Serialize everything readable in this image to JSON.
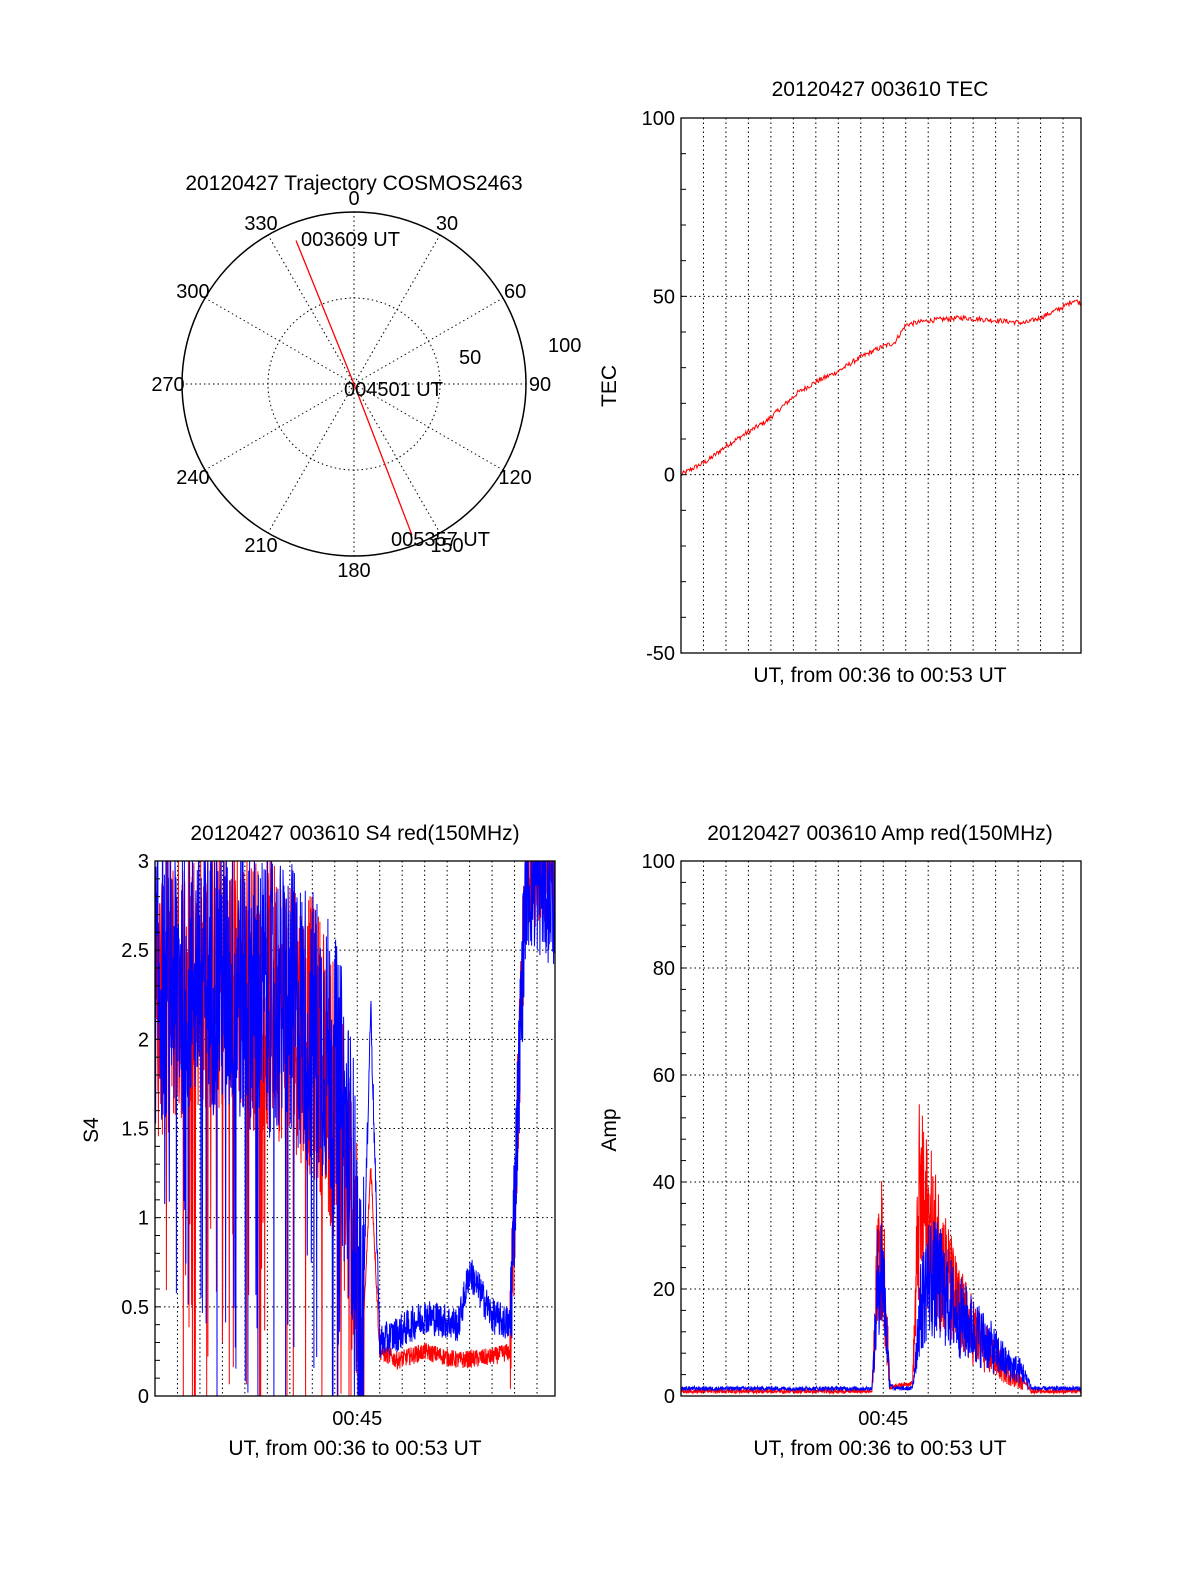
{
  "chart_data": [
    {
      "id": "trajectory",
      "type": "polar",
      "title": "20120427 Trajectory COSMOS2463",
      "azimuth_labels": [
        "0",
        "30",
        "60",
        "90",
        "120",
        "150",
        "180",
        "210",
        "240",
        "270",
        "300",
        "330"
      ],
      "radial_labels": [
        "50",
        "100"
      ],
      "radial_max": 100,
      "grid": true,
      "color": "#ff0000",
      "points": [
        {
          "label": "003609 UT",
          "azimuth": 338,
          "r": 90
        },
        {
          "label": "004501 UT",
          "azimuth": 0,
          "r": 0
        },
        {
          "label": "005357 UT",
          "azimuth": 159,
          "r": 94
        }
      ]
    },
    {
      "id": "tec",
      "type": "line",
      "title": "20120427 003610 TEC",
      "ylabel": "TEC",
      "xlabel": "UT, from 00:36 to 00:53 UT",
      "ylim": [
        -50,
        100
      ],
      "yticks": [
        "-50",
        "0",
        "50",
        "100"
      ],
      "xlim": [
        0,
        17.8
      ],
      "grid": true,
      "series": [
        {
          "color": "#ff0000",
          "x": [
            0,
            0.6,
            1.2,
            2.0,
            3.0,
            3.8,
            4.5,
            5.2,
            6.0,
            7.0,
            8.0,
            9.0,
            9.5,
            10.0,
            10.8,
            11.5,
            12.5,
            13.5,
            14.5,
            15.3,
            16.0,
            16.5,
            17.0,
            17.5,
            17.8
          ],
          "y": [
            0,
            2,
            4,
            8,
            12,
            15,
            19,
            23,
            26,
            29,
            33,
            36,
            37,
            42,
            43,
            43.5,
            44,
            43.5,
            43,
            42.5,
            44,
            45.5,
            47,
            49,
            48
          ]
        }
      ]
    },
    {
      "id": "s4",
      "type": "line",
      "title": "20120427 003610 S4 red(150MHz)",
      "ylabel": "S4",
      "xlabel": "UT, from 00:36 to 00:53 UT",
      "ylim": [
        0,
        3
      ],
      "yticks": [
        "0",
        "0.5",
        "1",
        "1.5",
        "2",
        "2.5",
        "3"
      ],
      "xlim": [
        0,
        17.8
      ],
      "xticks": [
        {
          "x": 9.0,
          "label": "00:45"
        }
      ],
      "grid": true,
      "series": [
        {
          "color": "#ff0000",
          "x": [
            0,
            2.0,
            4.0,
            6.0,
            7.5,
            8.2,
            8.8,
            9.2,
            9.6,
            10.0,
            10.8,
            12.0,
            13.5,
            15.0,
            15.8,
            16.5,
            17.8
          ],
          "y": [
            2.2,
            2.4,
            2.3,
            2.2,
            1.9,
            1.5,
            1.0,
            0.15,
            1.3,
            0.25,
            0.2,
            0.25,
            0.2,
            0.22,
            0.25,
            3.0,
            3.0
          ]
        },
        {
          "color": "#0000ff",
          "x": [
            0,
            2.0,
            4.0,
            6.0,
            7.5,
            8.2,
            8.8,
            9.2,
            9.6,
            10.0,
            10.8,
            12.0,
            13.5,
            14.0,
            15.0,
            15.8,
            16.5,
            17.8
          ],
          "y": [
            2.3,
            2.4,
            2.3,
            2.2,
            2.0,
            1.7,
            1.2,
            0.2,
            2.2,
            0.3,
            0.35,
            0.45,
            0.4,
            0.7,
            0.45,
            0.4,
            2.9,
            2.8
          ]
        }
      ]
    },
    {
      "id": "amp",
      "type": "line",
      "title": "20120427 003610 Amp red(150MHz)",
      "ylabel": "Amp",
      "xlabel": "UT, from 00:36 to 00:53 UT",
      "ylim": [
        0,
        100
      ],
      "yticks": [
        "0",
        "20",
        "40",
        "60",
        "80",
        "100"
      ],
      "xlim": [
        0,
        17.8
      ],
      "xticks": [
        {
          "x": 9.0,
          "label": "00:45"
        }
      ],
      "grid": true,
      "series": [
        {
          "color": "#ff0000",
          "x": [
            0,
            8.5,
            8.8,
            9.0,
            9.3,
            9.5,
            10.3,
            10.6,
            11.0,
            11.5,
            12.3,
            13.5,
            14.5,
            15.2,
            15.6,
            17.8
          ],
          "y": [
            0.5,
            0.5,
            38,
            35,
            1,
            1.5,
            2,
            48,
            42,
            35,
            22,
            12,
            6,
            3,
            0.5,
            0.5
          ]
        },
        {
          "color": "#0000ff",
          "x": [
            0,
            8.5,
            8.8,
            9.0,
            9.3,
            9.5,
            10.3,
            10.6,
            11.0,
            11.5,
            12.3,
            13.5,
            14.5,
            15.2,
            15.6,
            17.8
          ],
          "y": [
            1,
            1,
            32,
            30,
            2,
            1,
            1,
            20,
            30,
            28,
            20,
            14,
            8,
            6,
            1,
            1
          ]
        }
      ]
    }
  ]
}
